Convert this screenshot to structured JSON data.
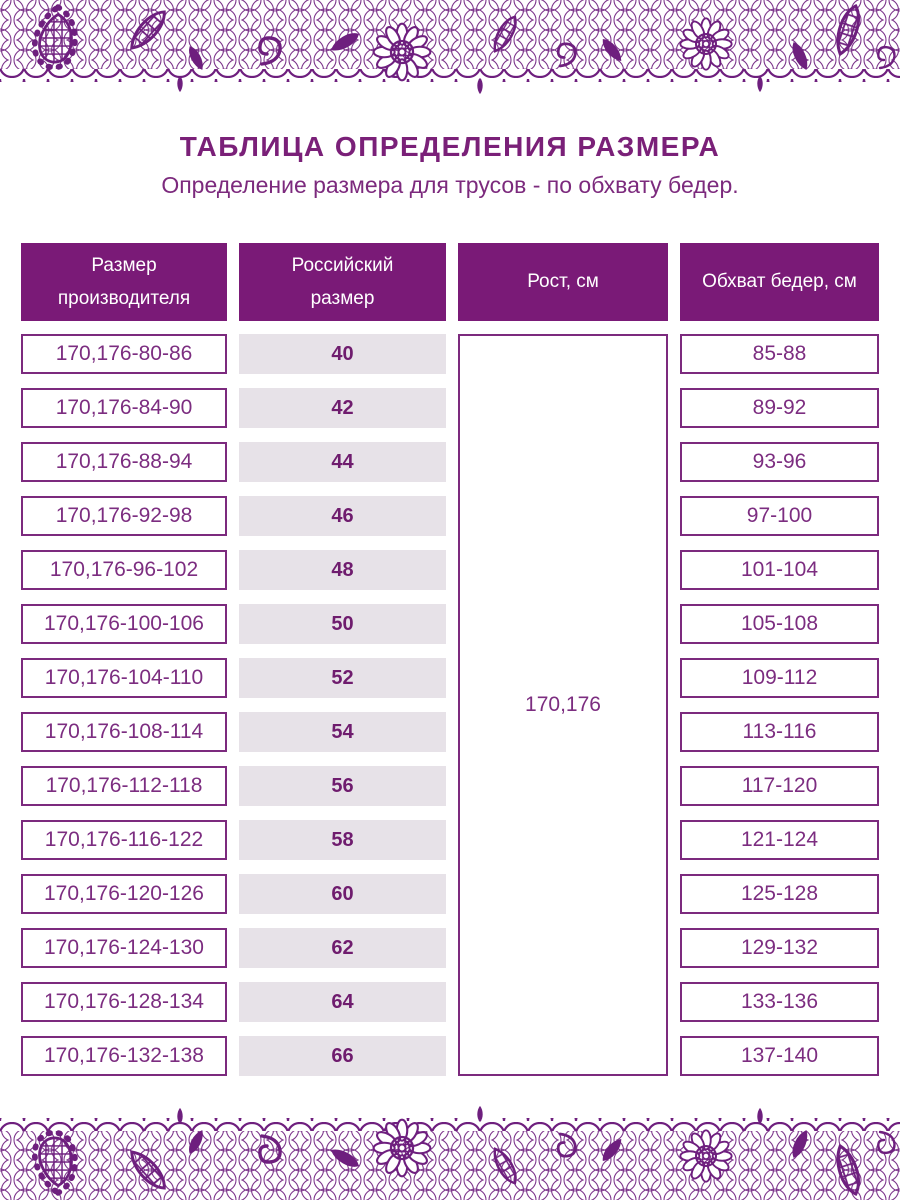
{
  "page": {
    "title": "ТАБЛИЦА ОПРЕДЕЛЕНИЯ РАЗМЕРА",
    "subtitle": "Определение размера для трусов - по обхвату бедер."
  },
  "colors": {
    "lace_purple": "#6e1f7e",
    "header_bg": "#7a1a77",
    "header_text": "#ffffff",
    "cell_border": "#7c2a7e",
    "cell_text": "#7c2d80",
    "alt_cell_bg": "#e7e2e8",
    "alt_cell_text": "#6f1c6e",
    "title_text": "#7a2078"
  },
  "table": {
    "columns": [
      {
        "id": "manufacturer",
        "label": "Размер\nпроизводителя"
      },
      {
        "id": "russian",
        "label": "Российский\nразмер"
      },
      {
        "id": "height",
        "label": "Рост, см"
      },
      {
        "id": "hips",
        "label": "Обхват бедер, см"
      }
    ],
    "height_value": "170,176",
    "rows": [
      {
        "manufacturer": "170,176-80-86",
        "russian": "40",
        "hips": "85-88"
      },
      {
        "manufacturer": "170,176-84-90",
        "russian": "42",
        "hips": "89-92"
      },
      {
        "manufacturer": "170,176-88-94",
        "russian": "44",
        "hips": "93-96"
      },
      {
        "manufacturer": "170,176-92-98",
        "russian": "46",
        "hips": "97-100"
      },
      {
        "manufacturer": "170,176-96-102",
        "russian": "48",
        "hips": "101-104"
      },
      {
        "manufacturer": "170,176-100-106",
        "russian": "50",
        "hips": "105-108"
      },
      {
        "manufacturer": "170,176-104-110",
        "russian": "52",
        "hips": "109-112"
      },
      {
        "manufacturer": "170,176-108-114",
        "russian": "54",
        "hips": "113-116"
      },
      {
        "manufacturer": "170,176-112-118",
        "russian": "56",
        "hips": "117-120"
      },
      {
        "manufacturer": "170,176-116-122",
        "russian": "58",
        "hips": "121-124"
      },
      {
        "manufacturer": "170,176-120-126",
        "russian": "60",
        "hips": "125-128"
      },
      {
        "manufacturer": "170,176-124-130",
        "russian": "62",
        "hips": "129-132"
      },
      {
        "manufacturer": "170,176-128-134",
        "russian": "64",
        "hips": "133-136"
      },
      {
        "manufacturer": "170,176-132-138",
        "russian": "66",
        "hips": "137-140"
      }
    ]
  }
}
